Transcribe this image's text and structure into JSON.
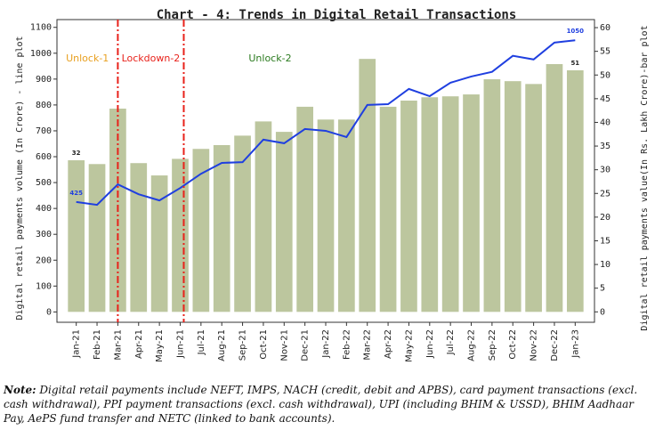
{
  "chart_data": {
    "type": "bar_line",
    "title": "Chart - 4: Trends in Digital Retail Transactions",
    "y_label": "Digital retail payments volume (In Crore) - line plot",
    "y2_label": "Digital retail payments value(In Rs. Lakh Crore)-bar plot",
    "categories": [
      "Jan-21",
      "Feb-21",
      "Mar-21",
      "Apr-21",
      "May-21",
      "Jun-21",
      "Jul-21",
      "Aug-21",
      "Sep-21",
      "Oct-21",
      "Nov-21",
      "Dec-21",
      "Jan-22",
      "Feb-22",
      "Mar-22",
      "Apr-22",
      "May-22",
      "Jun-22",
      "Jul-22",
      "Aug-22",
      "Sep-22",
      "Oct-22",
      "Nov-22",
      "Dec-22",
      "Jan-23"
    ],
    "series": [
      {
        "kind": "bar",
        "axis": "y2",
        "color": "#bcc69e",
        "values": [
          32,
          31.2,
          42.9,
          31.4,
          28.8,
          32.3,
          34.4,
          35.2,
          37.2,
          40.2,
          38,
          43.3,
          40.6,
          40.6,
          53.4,
          43.3,
          44.6,
          45.3,
          45.5,
          45.9,
          49.1,
          48.7,
          48.1,
          52.3,
          51
        ],
        "value_labels": [
          "32",
          null,
          null,
          null,
          null,
          null,
          null,
          null,
          null,
          null,
          null,
          null,
          null,
          null,
          null,
          null,
          null,
          null,
          null,
          null,
          null,
          null,
          null,
          null,
          "51"
        ]
      },
      {
        "kind": "line",
        "axis": "y",
        "color": "#1f3fe0",
        "values": [
          425,
          414,
          493,
          455,
          431,
          479,
          534,
          576,
          579,
          666,
          652,
          707,
          700,
          676,
          800,
          803,
          862,
          834,
          886,
          910,
          928,
          990,
          976,
          1041,
          1050
        ],
        "value_labels": [
          "425",
          null,
          null,
          null,
          null,
          null,
          null,
          null,
          null,
          null,
          null,
          null,
          null,
          null,
          null,
          null,
          null,
          null,
          null,
          null,
          null,
          null,
          null,
          null,
          "1050"
        ]
      }
    ],
    "ylim": [
      -40,
      1130
    ],
    "yticks": [
      0,
      100,
      200,
      300,
      400,
      500,
      600,
      700,
      800,
      900,
      1000,
      1100
    ],
    "y2lim": [
      -2.2,
      61.7
    ],
    "y2ticks": [
      0,
      5,
      10,
      15,
      20,
      25,
      30,
      35,
      40,
      45,
      50,
      55,
      60
    ],
    "markers": [
      2,
      5
    ],
    "marker_color": "#e8221b",
    "phases": [
      {
        "label": "Unlock-1",
        "color": "#e8a020"
      },
      {
        "label": "Lockdown-2",
        "color": "#e8221b"
      },
      {
        "label": "Unlock-2",
        "color": "#2a7a1e"
      }
    ]
  },
  "note_label": "Note:",
  "note": "Digital retail payments include NEFT, IMPS, NACH (credit, debit and APBS), card payment transactions (excl. cash withdrawal), PPI payment transactions (excl. cash withdrawal), UPI (including BHIM & USSD), BHIM Aadhaar Pay, AePS fund transfer and NETC (linked to bank accounts)."
}
